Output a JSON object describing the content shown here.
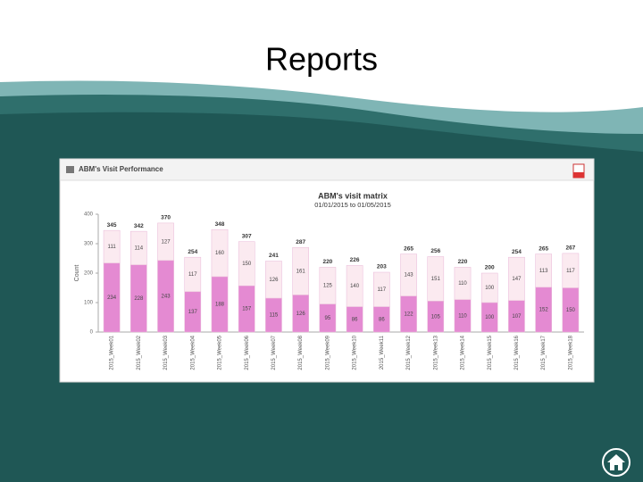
{
  "slide_title": "Reports",
  "panel_title": "ABM's Visit Performance",
  "chart_data": {
    "type": "stacked_bar",
    "title": "ABM's visit matrix",
    "subtitle": "01/01/2015 to 01/05/2015",
    "y_label": "Count",
    "categories": [
      "2015_Week01",
      "2015_Week02",
      "2015_Week03",
      "2015_Week04",
      "2015_Week05",
      "2015_Week06",
      "2015_Week07",
      "2015_Week08",
      "2015_Week09",
      "2015_Week10",
      "2015_Week11",
      "2015_Week12",
      "2015_Week13",
      "2015_Week14",
      "2015_Week15",
      "2015_Week16",
      "2015_Week17",
      "2015_Week18"
    ],
    "series": [
      {
        "color": "#e48ad2",
        "values": [
          234,
          228,
          243,
          137,
          188,
          157,
          115,
          126,
          95,
          86,
          86,
          122,
          105,
          110,
          100,
          107,
          152,
          150
        ]
      },
      {
        "color": "#fbeaf0",
        "values": [
          111,
          114,
          127,
          117,
          160,
          150,
          126,
          161,
          125,
          140,
          117,
          143,
          151,
          110,
          100,
          147,
          113,
          117
        ]
      }
    ],
    "totals": [
      345,
      342,
      370,
      254,
      348,
      307,
      241,
      287,
      220,
      226,
      203,
      265,
      256,
      220,
      200,
      254,
      265,
      267
    ],
    "ylim": [
      0,
      400
    ],
    "yticks": [
      0,
      100,
      200,
      300,
      400
    ]
  }
}
